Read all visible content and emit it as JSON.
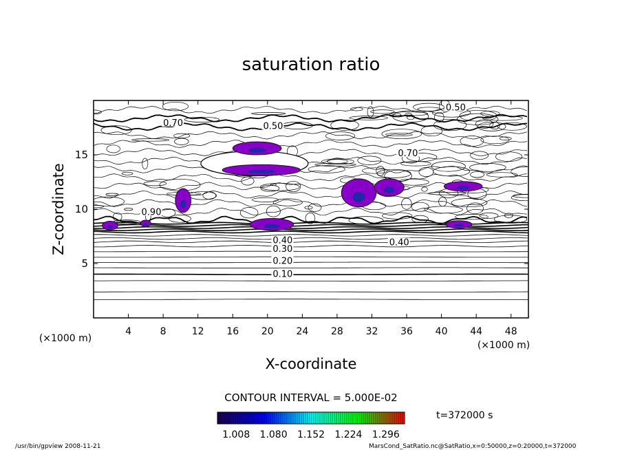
{
  "chart_data": {
    "type": "contour",
    "title": "saturation ratio",
    "xlabel": "X-coordinate",
    "ylabel": "Z-coordinate",
    "x_unit": "(×1000 m)",
    "z_unit": "(×1000 m)",
    "xlim": [
      0,
      50
    ],
    "ylim": [
      0,
      20
    ],
    "x_ticks": [
      "4",
      "8",
      "12",
      "16",
      "20",
      "24",
      "28",
      "32",
      "36",
      "40",
      "44",
      "48"
    ],
    "y_ticks": [
      "5",
      "10",
      "15"
    ],
    "contour_interval_text": "CONTOUR INTERVAL = 5.000E-02",
    "colorbar": {
      "tick_labels": [
        "1.008",
        "1.080",
        "1.152",
        "1.224",
        "1.296"
      ],
      "min": 0.972,
      "max": 1.332,
      "colors": [
        "#1a0050",
        "#0000ff",
        "#00ffff",
        "#00ff00",
        "#ff0000"
      ]
    },
    "shade_color": "#8800c8",
    "contour_labels": [
      {
        "text": "0.10",
        "x": 20.6,
        "z": 3.9
      },
      {
        "text": "0.20",
        "x": 20.6,
        "z": 5.1
      },
      {
        "text": "0.30",
        "x": 20.6,
        "z": 6.2
      },
      {
        "text": "0.40",
        "x": 20.6,
        "z": 7.0
      },
      {
        "text": "0.40",
        "x": 34.0,
        "z": 6.8
      },
      {
        "text": "0.50",
        "x": 19.5,
        "z": 17.5
      },
      {
        "text": "0.50",
        "x": 40.5,
        "z": 19.2
      },
      {
        "text": "0.70",
        "x": 8.0,
        "z": 17.8
      },
      {
        "text": "0.70",
        "x": 35.0,
        "z": 15.0
      },
      {
        "text": "0.90",
        "x": 5.5,
        "z": 9.6
      }
    ],
    "isolines_z": [
      1.7,
      2.4,
      3.4,
      4.0,
      4.6,
      5.1,
      5.6,
      6.1,
      6.6,
      7.0,
      7.3,
      7.6,
      7.9,
      8.1,
      8.3,
      8.5,
      8.7
    ],
    "regions_above_1": [
      {
        "x": 18.8,
        "z": 15.6,
        "rx": 2.8,
        "rz": 0.6
      },
      {
        "x": 19.3,
        "z": 13.6,
        "rx": 4.5,
        "rz": 0.5
      },
      {
        "x": 10.3,
        "z": 10.8,
        "rx": 0.9,
        "rz": 1.1
      },
      {
        "x": 20.5,
        "z": 8.6,
        "rx": 2.5,
        "rz": 0.55
      },
      {
        "x": 30.5,
        "z": 11.5,
        "rx": 2.0,
        "rz": 1.3
      },
      {
        "x": 34.0,
        "z": 12.0,
        "rx": 1.7,
        "rz": 0.8
      },
      {
        "x": 42.5,
        "z": 12.1,
        "rx": 2.2,
        "rz": 0.45
      },
      {
        "x": 1.9,
        "z": 8.5,
        "rx": 0.9,
        "rz": 0.4
      },
      {
        "x": 42.0,
        "z": 8.6,
        "rx": 1.5,
        "rz": 0.35
      },
      {
        "x": 6.0,
        "z": 8.7,
        "rx": 0.6,
        "rz": 0.3
      }
    ],
    "time_label": "t=372000 s",
    "footer_left": "/usr/bin/gpview   2008-11-21",
    "footer_right": "MarsCond_SatRatio.nc@SatRatio,x=0:50000,z=0:20000,t=372000"
  }
}
